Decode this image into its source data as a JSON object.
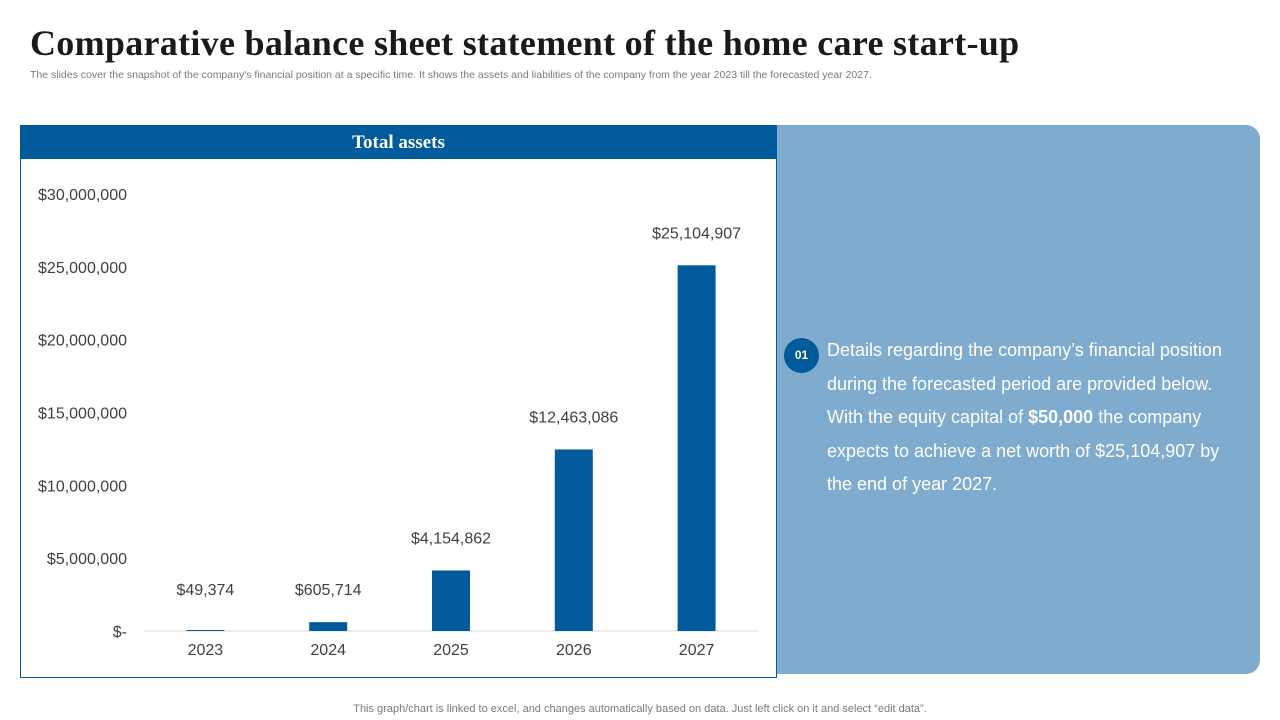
{
  "page": {
    "title": "Comparative balance sheet statement of the home care start-up",
    "subtitle": "The slides cover the snapshot of the company's financial position at a specific time. It shows the assets and liabilities of the company from the year 2023 till the forecasted year 2027.",
    "footer": "This graph/chart is linked to excel, and changes automatically based on data. Just left click on it and select “edit data”."
  },
  "details": {
    "badge": "01",
    "text_before": "Details regarding the company’s financial position during the forecasted period are provided below. With the equity capital of ",
    "highlight": "$50,000",
    "text_after": " the company expects to achieve a net worth of $25,104,907 by the end of year 2027."
  },
  "colors": {
    "bar": "#005a9c",
    "header": "#005a9c",
    "panel": "#7facce"
  },
  "chart_data": {
    "type": "bar",
    "title": "Total assets",
    "categories": [
      "2023",
      "2024",
      "2025",
      "2026",
      "2027"
    ],
    "values": [
      49374,
      605714,
      4154862,
      12463086,
      25104907
    ],
    "data_labels": [
      "$49,374",
      "$605,714",
      "$4,154,862",
      "$12,463,086",
      "$25,104,907"
    ],
    "ylim": [
      0,
      30000000
    ],
    "yticks": [
      0,
      5000000,
      10000000,
      15000000,
      20000000,
      25000000,
      30000000
    ],
    "ytick_labels": [
      "$-",
      "$5,000,000",
      "$10,000,000",
      "$15,000,000",
      "$20,000,000",
      "$25,000,000",
      "$30,000,000"
    ],
    "grid": false,
    "legend": "none"
  }
}
